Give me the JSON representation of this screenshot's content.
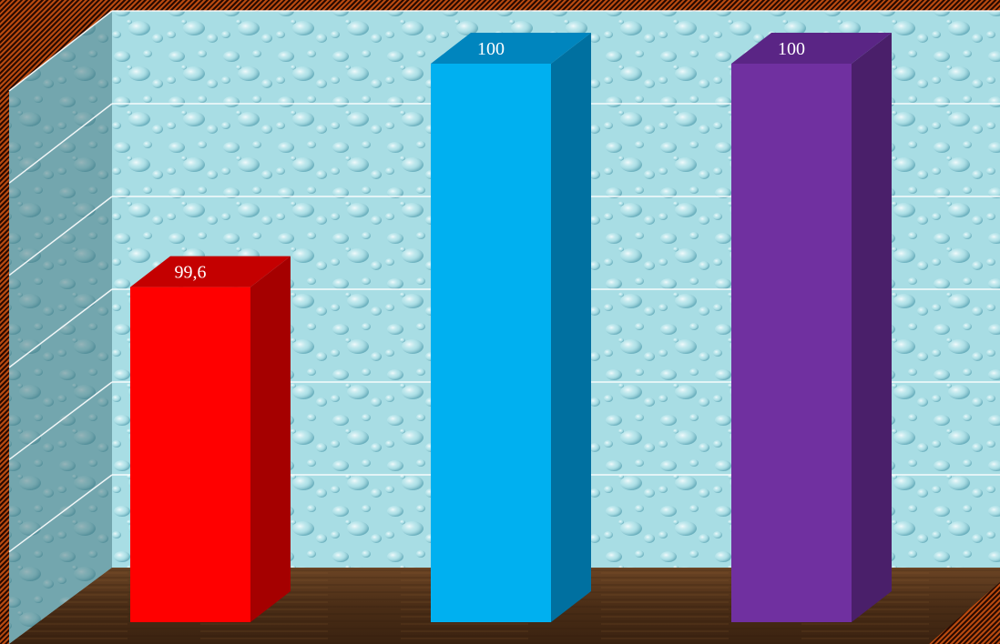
{
  "chart_data": {
    "type": "bar",
    "title": "",
    "xlabel": "",
    "ylabel": "",
    "categories": [
      "",
      "",
      ""
    ],
    "values": [
      99.6,
      100,
      100
    ],
    "data_labels": [
      "99,6",
      "100",
      "100"
    ],
    "ylim": [
      99,
      100
    ],
    "grid": true,
    "legend": "none",
    "colors": {
      "front": [
        "#ff0000",
        "#00b0f0",
        "#7030a0"
      ],
      "side": [
        "#a50000",
        "#0070a0",
        "#4a1f6a"
      ],
      "top": [
        "#c40000",
        "#0085be",
        "#5a2585"
      ]
    }
  }
}
